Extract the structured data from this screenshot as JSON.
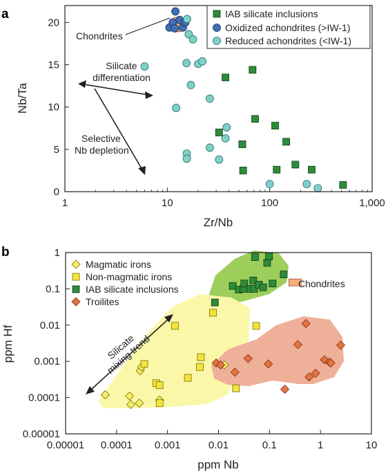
{
  "colors": {
    "iab": "#2e8b3a",
    "oxidized": "#3f6fb5",
    "reduced": "#7fd1c8",
    "magmatic": "#f4ee6a",
    "nonmagmatic": "#f2e43c",
    "troilite": "#e4733f",
    "chondrite": "#f5b07a",
    "region_green": "#8cc63f",
    "region_yellow": "#fbf7a9",
    "region_red": "#efb09a"
  },
  "chart_data": [
    {
      "panel": "a",
      "type": "scatter",
      "xscale": "log",
      "xlim": [
        1,
        1000
      ],
      "ylim": [
        0,
        22
      ],
      "xlabel": "Zr/Nb",
      "ylabel": "Nb/Ta",
      "xticks": [
        1,
        10,
        100,
        1000
      ],
      "xtick_labels": [
        "1",
        "10",
        "100",
        "1,000"
      ],
      "yticks": [
        0,
        5,
        10,
        15,
        20
      ],
      "ytick_labels": [
        "0",
        "5",
        "10",
        "15",
        "20"
      ],
      "legend_position": "top-right",
      "series": [
        {
          "name": "IAB silicate inclusions",
          "marker": "square",
          "color_key": "iab",
          "points": [
            [
              37,
              13.5
            ],
            [
              68,
              14.4
            ],
            [
              72,
              8.6
            ],
            [
              113,
              7.8
            ],
            [
              32,
              7.0
            ],
            [
              54,
              5.6
            ],
            [
              145,
              5.9
            ],
            [
              55,
              2.5
            ],
            [
              117,
              2.6
            ],
            [
              178,
              3.2
            ],
            [
              257,
              2.6
            ],
            [
              520,
              0.8
            ]
          ]
        },
        {
          "name": "Oxidized achondrites (>IW-1)",
          "marker": "circle",
          "color_key": "oxidized",
          "points": [
            [
              10.5,
              19.4
            ],
            [
              11.3,
              20.0
            ],
            [
              11.8,
              19.3
            ],
            [
              12.0,
              21.3
            ],
            [
              13.2,
              20.3
            ],
            [
              14.2,
              19.4
            ],
            [
              15.0,
              20.0
            ]
          ]
        },
        {
          "name": "Reduced achondrites (<IW-1)",
          "marker": "circle",
          "color_key": "reduced",
          "points": [
            [
              15.6,
              20.4
            ],
            [
              16.2,
              18.6
            ],
            [
              17.8,
              18.0
            ],
            [
              6.0,
              14.8
            ],
            [
              15.4,
              15.2
            ],
            [
              20.0,
              15.1
            ],
            [
              22.0,
              15.4
            ],
            [
              17.0,
              12.6
            ],
            [
              12.2,
              9.9
            ],
            [
              26.0,
              11.0
            ],
            [
              38.0,
              7.6
            ],
            [
              37.0,
              6.3
            ],
            [
              15.5,
              4.5
            ],
            [
              15.5,
              3.9
            ],
            [
              26.0,
              5.2
            ],
            [
              32.0,
              3.8
            ],
            [
              100.0,
              0.9
            ],
            [
              230.0,
              0.9
            ],
            [
              295.0,
              0.4
            ]
          ]
        },
        {
          "name": "Chondrites",
          "marker": "rect",
          "color_key": "chondrite",
          "x": 12.5,
          "y_range": [
            18.9,
            20.6
          ]
        }
      ],
      "annotations": [
        {
          "text_lines": [
            "Chondrites"
          ]
        },
        {
          "text_lines": [
            "Silicate",
            "differentiation"
          ]
        },
        {
          "text_lines": [
            "Selective",
            "Nb depletion"
          ]
        }
      ]
    },
    {
      "panel": "b",
      "type": "scatter",
      "xscale": "log",
      "yscale": "log",
      "xlim": [
        1e-05,
        10
      ],
      "ylim": [
        1e-05,
        1
      ],
      "xlabel": "ppm Nb",
      "ylabel": "ppm Hf",
      "xticks": [
        1e-05,
        0.0001,
        0.001,
        0.01,
        0.1,
        1,
        10
      ],
      "xtick_labels": [
        "0.00001",
        "0.0001",
        "0.001",
        "0.01",
        "0.1",
        "1",
        "10"
      ],
      "yticks": [
        1e-05,
        0.0001,
        0.001,
        0.01,
        0.1,
        1
      ],
      "ytick_labels": [
        "0.00001",
        "0.0001",
        "0.001",
        "0.01",
        "0.1",
        "1"
      ],
      "legend_position": "top-left",
      "series": [
        {
          "name": "Magmatic irons",
          "marker": "diamond",
          "color_key": "magmatic",
          "points": [
            [
              6e-05,
              0.00012
            ],
            [
              0.00018,
              0.00011
            ],
            [
              0.00019,
              6.5e-05
            ],
            [
              0.00028,
              7e-05
            ],
            [
              0.00029,
              0.00055
            ],
            [
              0.00031,
              0.0007
            ],
            [
              0.0007,
              8.5e-05
            ],
            [
              0.013,
              0.0008
            ]
          ]
        },
        {
          "name": "Non-magmatic irons",
          "marker": "square",
          "color_key": "nonmagmatic",
          "points": [
            [
              0.0014,
              0.0095
            ],
            [
              0.0078,
              0.022
            ],
            [
              0.055,
              0.0095
            ],
            [
              0.00035,
              0.00085
            ],
            [
              0.0006,
              0.00025
            ],
            [
              0.0007,
              0.00022
            ],
            [
              0.0007,
              7e-05
            ],
            [
              0.0025,
              0.00035
            ],
            [
              0.0043,
              0.0007
            ],
            [
              0.0045,
              0.0013
            ],
            [
              0.022,
              0.00018
            ]
          ]
        },
        {
          "name": "IAB silicate inclusions",
          "marker": "square",
          "color_key": "iab",
          "points": [
            [
              0.0085,
              0.042
            ],
            [
              0.019,
              0.12
            ],
            [
              0.025,
              0.095
            ],
            [
              0.031,
              0.1
            ],
            [
              0.032,
              0.14
            ],
            [
              0.042,
              0.1
            ],
            [
              0.048,
              0.17
            ],
            [
              0.05,
              0.1
            ],
            [
              0.052,
              0.75
            ],
            [
              0.062,
              0.13
            ],
            [
              0.075,
              0.11
            ],
            [
              0.09,
              0.52
            ],
            [
              0.098,
              0.78
            ],
            [
              0.115,
              0.14
            ],
            [
              0.19,
              0.25
            ]
          ]
        },
        {
          "name": "Troilites",
          "marker": "diamond",
          "color_key": "troilite",
          "points": [
            [
              0.009,
              0.0009
            ],
            [
              0.011,
              0.0008
            ],
            [
              0.021,
              0.0005
            ],
            [
              0.038,
              0.0012
            ],
            [
              0.095,
              0.00085
            ],
            [
              0.2,
              0.00017
            ],
            [
              0.36,
              0.0029
            ],
            [
              0.52,
              0.011
            ],
            [
              0.6,
              0.00037
            ],
            [
              0.8,
              0.00047
            ],
            [
              1.2,
              0.0011
            ],
            [
              1.5,
              0.00095
            ],
            [
              1.6,
              0.0009
            ],
            [
              2.5,
              0.0028
            ]
          ]
        },
        {
          "name": "Chondrites",
          "marker": "rect",
          "color_key": "chondrite",
          "x_range": [
            0.24,
            0.42
          ],
          "y": 0.15
        }
      ],
      "annotations": [
        {
          "text_lines": [
            "Chondrites"
          ]
        },
        {
          "text_lines": [
            "Silicate",
            "mixing trend"
          ]
        }
      ]
    }
  ]
}
